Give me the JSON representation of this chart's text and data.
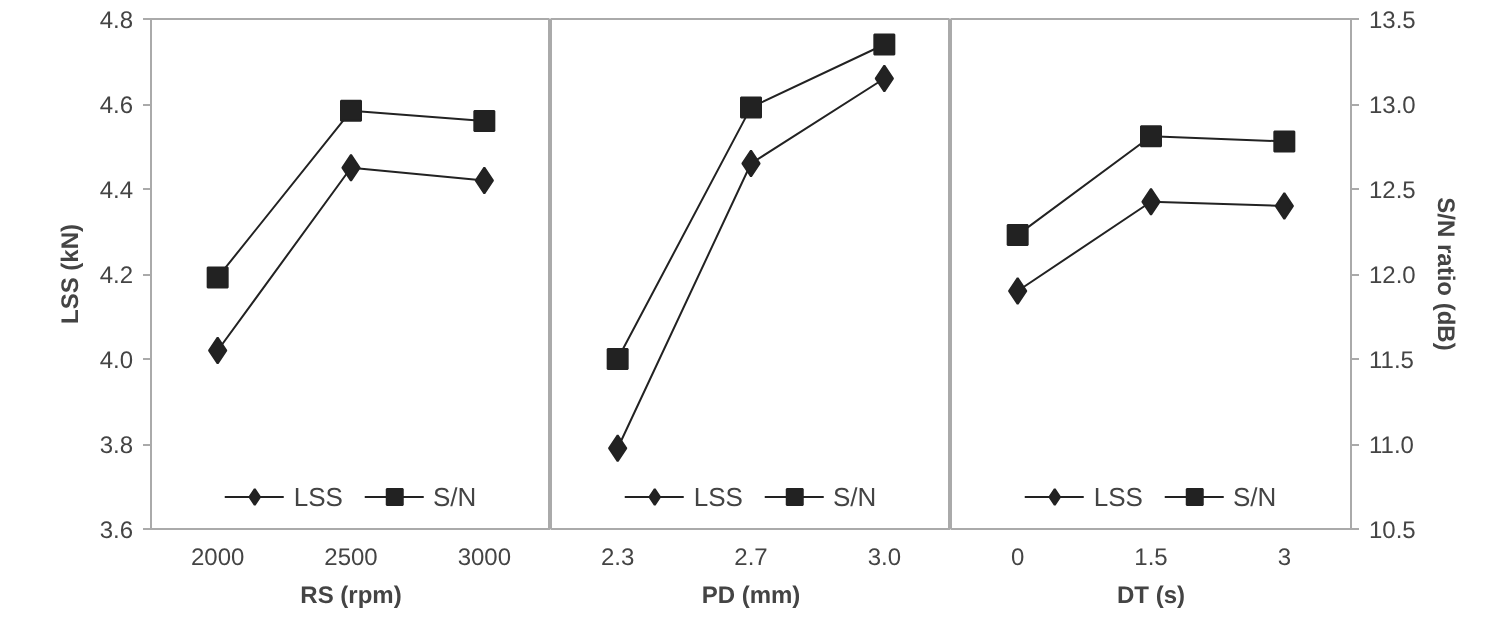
{
  "chart_data": {
    "type": "line",
    "categories": [
      "2000",
      "2500",
      "3000",
      "2.3",
      "2.7",
      "3.0",
      "0",
      "1.5",
      "3"
    ],
    "annotations": [
      "RS (rpm)",
      "PD (mm)",
      "DT (s)"
    ],
    "ylabel": "LSS (kN)",
    "y2label": "S/N ratio (dB)",
    "ylim": [
      3.6,
      4.8
    ],
    "yticks": [
      {
        "value": 3.6,
        "label": "3.6"
      },
      {
        "value": 3.8,
        "label": "3.8"
      },
      {
        "value": 4.0,
        "label": "4.0"
      },
      {
        "value": 4.2,
        "label": "4.2"
      },
      {
        "value": 4.4,
        "label": "4.4"
      },
      {
        "value": 4.6,
        "label": "4.6"
      },
      {
        "value": 4.8,
        "label": "4.8"
      }
    ],
    "y2lim": [
      10.5,
      13.5
    ],
    "y2ticks": [
      {
        "value": 10.5,
        "label": "10.5"
      },
      {
        "value": 11.0,
        "label": "11.0"
      },
      {
        "value": 11.5,
        "label": "11.5"
      },
      {
        "value": 12.0,
        "label": "12.0"
      },
      {
        "value": 12.5,
        "label": "12.5"
      },
      {
        "value": 13.0,
        "label": "13.0"
      },
      {
        "value": 13.5,
        "label": "13.5"
      }
    ],
    "legend": "bottom",
    "series": [
      {
        "name": "LSS",
        "color": "#222222",
        "marker": "diamond",
        "values": [
          4.02,
          4.45,
          4.42,
          null,
          null,
          null,
          null,
          null,
          null
        ]
      },
      {
        "name": "S/N",
        "color": "#222222",
        "marker": "square",
        "axis": "y2",
        "values": [
          11.98,
          12.96,
          12.9,
          null,
          null,
          null,
          null,
          null,
          null
        ]
      },
      {
        "name": "LSS",
        "color": "#222222",
        "marker": "diamond",
        "values": [
          null,
          null,
          null,
          3.79,
          4.46,
          4.66,
          null,
          null,
          null
        ]
      },
      {
        "name": "S/N",
        "color": "#222222",
        "marker": "square",
        "axis": "y2",
        "values": [
          null,
          null,
          null,
          11.5,
          12.98,
          13.35,
          null,
          null,
          null
        ]
      },
      {
        "name": "LSS",
        "color": "#222222",
        "marker": "diamond",
        "values": [
          null,
          null,
          null,
          null,
          null,
          null,
          4.16,
          4.37,
          4.36
        ]
      },
      {
        "name": "S/N",
        "color": "#222222",
        "marker": "square",
        "axis": "y2",
        "values": [
          null,
          null,
          null,
          null,
          null,
          null,
          12.23,
          12.81,
          12.78
        ]
      }
    ]
  }
}
